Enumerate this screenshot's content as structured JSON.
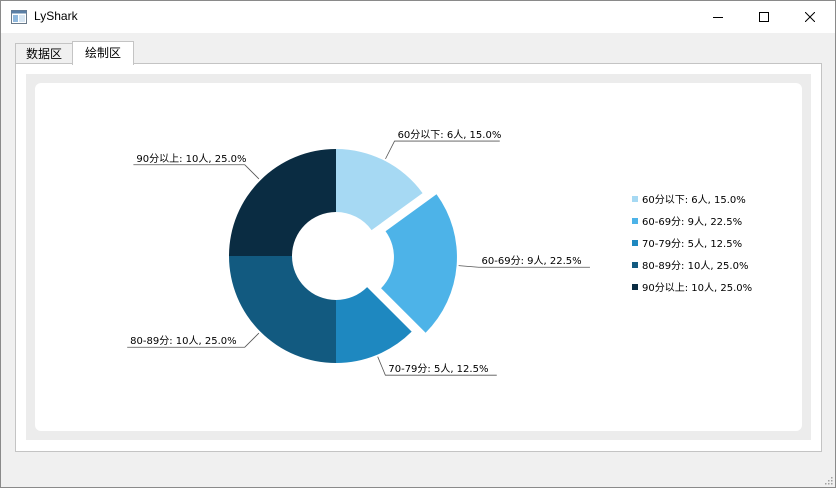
{
  "window": {
    "title": "LyShark",
    "icon": "app-window-icon",
    "controls": [
      "minimize-icon",
      "maximize-icon",
      "close-icon"
    ]
  },
  "tabs": [
    {
      "label": "数据区",
      "active": false
    },
    {
      "label": "绘制区",
      "active": true
    }
  ],
  "chart_data": {
    "type": "pie",
    "hole": true,
    "exploded": [
      "60-69分"
    ],
    "legend_position": "right",
    "slices": [
      {
        "category": "60分以下",
        "count": 6,
        "percent": 15.0,
        "label": "60分以下: 6人, 15.0%",
        "color": "#a6d9f3"
      },
      {
        "category": "60-69分",
        "count": 9,
        "percent": 22.5,
        "label": "60-69分: 9人, 22.5%",
        "color": "#4db3e8"
      },
      {
        "category": "70-79分",
        "count": 5,
        "percent": 12.5,
        "label": "70-79分: 5人, 12.5%",
        "color": "#1e88c0"
      },
      {
        "category": "80-89分",
        "count": 10,
        "percent": 25.0,
        "label": "80-89分: 10人, 25.0%",
        "color": "#125a80"
      },
      {
        "category": "90分以上",
        "count": 10,
        "percent": 25.0,
        "label": "90分以上: 10人, 25.0%",
        "color": "#0a2c42"
      }
    ]
  }
}
